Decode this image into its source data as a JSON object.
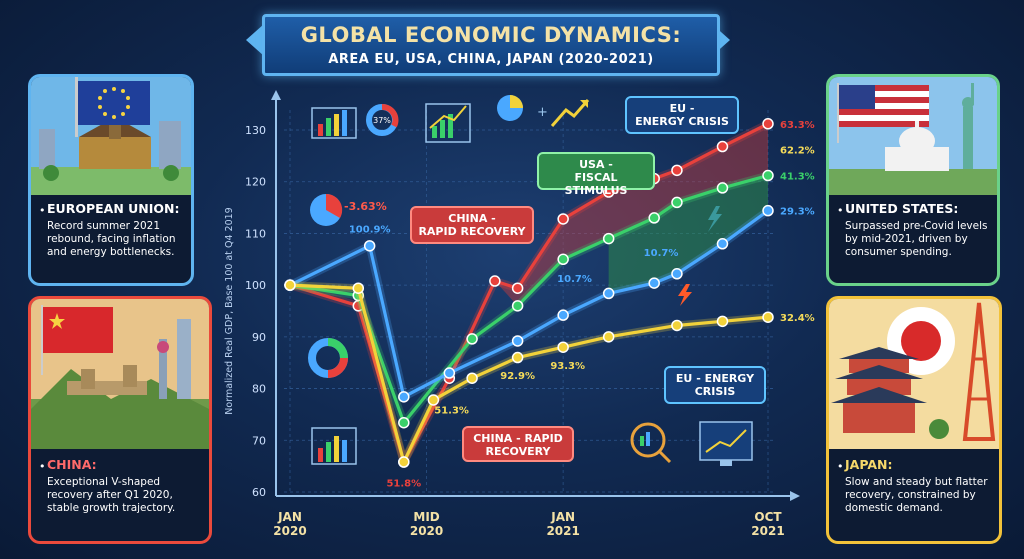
{
  "title": {
    "line1": "GLOBAL ECONOMIC DYNAMICS:",
    "line2": "AREA EU, USA, CHINA, JAPAN (2020-2021)"
  },
  "cards": {
    "eu": {
      "heading": "EUROPEAN UNION:",
      "text": "Record summer 2021 rebound, facing inflation and energy bottlenecks."
    },
    "usa": {
      "heading": "UNITED STATES:",
      "text": "Surpassed pre-Covid levels by mid-2021, driven by consumer spending."
    },
    "china": {
      "heading": "CHINA:",
      "text": "Exceptional V-shaped recovery after Q1 2020, stable growth trajectory."
    },
    "japan": {
      "heading": "JAPAN:",
      "text": "Slow and steady but flatter recovery, constrained by domestic demand."
    }
  },
  "annotations": {
    "eu_energy_top": "EU -\nENERGY CRISIS",
    "usa_fiscal": "USA -\nFISCAL STIMULUS",
    "china_rapid_mid": "CHINA -\nRAPID RECOVERY",
    "eu_energy_bottom": "EU - ENERGY\nCRISIS",
    "china_rapid_bottom": "CHINA - RAPID\nRECOVERY",
    "pie_label": "-3.63%",
    "donut_label": "37%"
  },
  "colors": {
    "red": "#e8413c",
    "green": "#3ad06a",
    "blue": "#4aa8ff",
    "yellow": "#f2d23a",
    "eu_border": "#5fb4f0",
    "usa_border": "#6ad28a",
    "china_border": "#ea4a3c",
    "japan_border": "#f2c23a"
  },
  "chart_data": {
    "type": "line",
    "ylabel": "Normalized Real GDP, Base 100 at Q4 2019",
    "xlabel": "",
    "ylim": [
      60,
      130
    ],
    "y_ticks": [
      60,
      70,
      80,
      90,
      100,
      110,
      120,
      130
    ],
    "x_ticks": [
      "JAN\n2020",
      "MID\n2020",
      "JAN\n2021",
      "OCT\n2021"
    ],
    "x_range": [
      0,
      21
    ],
    "x_tick_positions": [
      0,
      6,
      12,
      21
    ],
    "grid": true,
    "series": [
      {
        "color": "red",
        "points": [
          [
            0,
            100
          ],
          [
            3,
            96
          ],
          [
            5,
            65.8
          ],
          [
            7,
            82
          ],
          [
            9,
            100.8
          ],
          [
            10,
            99.4
          ],
          [
            12,
            112.8
          ],
          [
            14,
            118
          ],
          [
            16,
            120.6
          ],
          [
            17,
            122.2
          ],
          [
            19,
            126.8
          ],
          [
            21,
            131.2
          ]
        ]
      },
      {
        "color": "green",
        "points": [
          [
            0,
            100
          ],
          [
            3,
            98
          ],
          [
            5,
            73.4
          ],
          [
            8,
            89.6
          ],
          [
            10,
            96
          ],
          [
            12,
            105
          ],
          [
            14,
            109
          ],
          [
            16,
            113
          ],
          [
            17,
            116
          ],
          [
            19,
            118.8
          ],
          [
            21,
            121.2
          ]
        ]
      },
      {
        "color": "blue",
        "points": [
          [
            0,
            100
          ],
          [
            3.5,
            107.6
          ],
          [
            5,
            78.4
          ],
          [
            7,
            83
          ],
          [
            10,
            89.2
          ],
          [
            12,
            94.2
          ],
          [
            14,
            98.4
          ],
          [
            16,
            100.4
          ],
          [
            17,
            102.2
          ],
          [
            19,
            108
          ],
          [
            21,
            114.4
          ]
        ]
      },
      {
        "color": "yellow",
        "points": [
          [
            0,
            100
          ],
          [
            3,
            99.4
          ],
          [
            5,
            65.8
          ],
          [
            6.3,
            77.8
          ],
          [
            8,
            82
          ],
          [
            10,
            86
          ],
          [
            12,
            88
          ],
          [
            14,
            90
          ],
          [
            17,
            92.2
          ],
          [
            19,
            93
          ],
          [
            21,
            93.8
          ]
        ]
      }
    ],
    "data_labels": [
      {
        "text": "63.3%",
        "x": 21,
        "y": 131.2,
        "color": "red"
      },
      {
        "text": "62.2%",
        "x": 21,
        "y": 126.2,
        "color": "yellow"
      },
      {
        "text": "41.3%",
        "x": 21,
        "y": 121.2,
        "color": "green"
      },
      {
        "text": "29.3%",
        "x": 21,
        "y": 114.4,
        "color": "blue"
      },
      {
        "text": "32.4%",
        "x": 21,
        "y": 93.8,
        "color": "yellow"
      },
      {
        "text": "100.9%",
        "x": 3.5,
        "y": 111,
        "color": "blue"
      },
      {
        "text": "51.8%",
        "x": 5,
        "y": 61.8,
        "color": "red"
      },
      {
        "text": "51.3%",
        "x": 7.1,
        "y": 76,
        "color": "yellow"
      },
      {
        "text": "92.9%",
        "x": 10,
        "y": 82.6,
        "color": "yellow"
      },
      {
        "text": "93.3%",
        "x": 12.2,
        "y": 84.6,
        "color": "yellow"
      },
      {
        "text": "10.7%",
        "x": 12.5,
        "y": 101.4,
        "color": "blue"
      },
      {
        "text": "10.7%",
        "x": 16.3,
        "y": 106.4,
        "color": "blue"
      }
    ]
  }
}
